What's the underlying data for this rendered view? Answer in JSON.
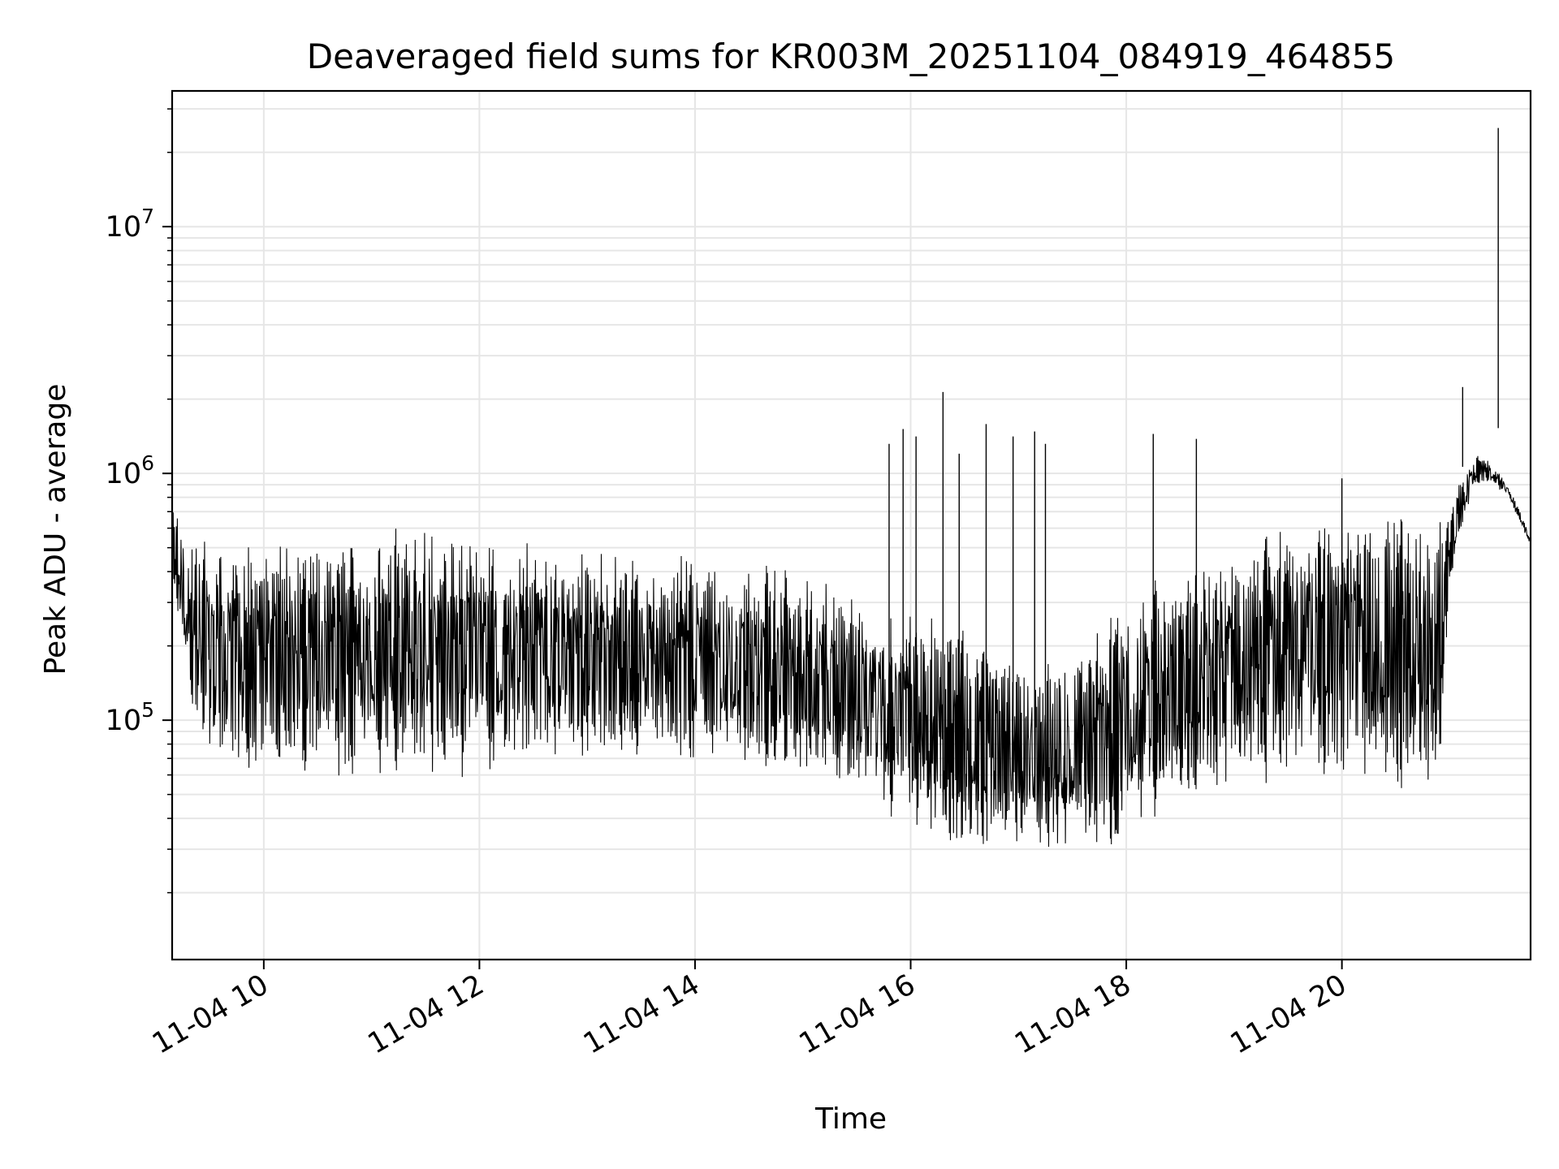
{
  "chart_data": {
    "type": "line",
    "title": "Deaveraged field sums for KR003M_20251104_084919_464855",
    "xlabel": "Time",
    "ylabel": "Peak ADU - average",
    "yscale": "log",
    "grid": true,
    "line_color": "#000000",
    "grid_color": "#e6e6e6",
    "xlim": [
      9.15,
      21.75
    ],
    "ylim_exp": [
      4.03,
      7.55
    ],
    "x_ticks": [
      {
        "value": 10,
        "label": "11-04 10"
      },
      {
        "value": 12,
        "label": "11-04 12"
      },
      {
        "value": 14,
        "label": "11-04 14"
      },
      {
        "value": 16,
        "label": "11-04 16"
      },
      {
        "value": 18,
        "label": "11-04 18"
      },
      {
        "value": 20,
        "label": "11-04 20"
      }
    ],
    "y_ticks": [
      {
        "exp": 5,
        "base": "10",
        "power": "5"
      },
      {
        "exp": 6,
        "base": "10",
        "power": "6"
      },
      {
        "exp": 7,
        "base": "10",
        "power": "7"
      }
    ],
    "envelope": {
      "hours": [
        9.15,
        9.3,
        9.5,
        9.8,
        10.0,
        10.5,
        11.0,
        11.3,
        11.8,
        12.3,
        12.8,
        13.3,
        13.8,
        14.3,
        14.8,
        15.3,
        15.8,
        16.2,
        16.6,
        17.0,
        17.4,
        17.8,
        18.0,
        18.3,
        18.6,
        19.0,
        19.3,
        19.6,
        19.9,
        20.3,
        20.6,
        20.9,
        21.0,
        21.1,
        21.25,
        21.4,
        21.55,
        21.75
      ],
      "low_exp": [
        5.6,
        5.0,
        4.75,
        4.72,
        4.72,
        4.72,
        4.72,
        4.75,
        4.72,
        4.76,
        4.76,
        4.78,
        4.78,
        4.78,
        4.76,
        4.68,
        4.58,
        4.47,
        4.42,
        4.42,
        4.42,
        4.45,
        4.5,
        4.55,
        4.6,
        4.68,
        4.72,
        4.7,
        4.68,
        4.68,
        4.66,
        4.65,
        5.5,
        5.75,
        5.95,
        5.95,
        5.9,
        5.7
      ],
      "high_exp": [
        5.9,
        5.8,
        5.8,
        5.8,
        5.78,
        5.75,
        5.8,
        5.85,
        5.82,
        5.78,
        5.75,
        5.72,
        5.72,
        5.68,
        5.66,
        5.6,
        5.5,
        5.45,
        5.4,
        5.3,
        5.3,
        5.4,
        5.55,
        5.6,
        5.68,
        5.75,
        5.8,
        5.88,
        5.9,
        5.9,
        5.9,
        5.9,
        5.85,
        6.0,
        6.08,
        6.05,
        5.95,
        5.75
      ]
    },
    "spikes": [
      {
        "hour": 15.8,
        "exp": 6.12
      },
      {
        "hour": 15.93,
        "exp": 6.18
      },
      {
        "hour": 16.05,
        "exp": 6.15
      },
      {
        "hour": 16.3,
        "exp": 6.33
      },
      {
        "hour": 16.45,
        "exp": 6.08
      },
      {
        "hour": 16.7,
        "exp": 6.2
      },
      {
        "hour": 16.95,
        "exp": 6.15
      },
      {
        "hour": 17.15,
        "exp": 6.17
      },
      {
        "hour": 17.25,
        "exp": 6.12
      },
      {
        "hour": 18.25,
        "exp": 6.16
      },
      {
        "hour": 18.65,
        "exp": 6.14
      },
      {
        "hour": 20.0,
        "exp": 5.98
      },
      {
        "hour": 21.12,
        "exp": 6.35
      },
      {
        "hour": 21.45,
        "exp": 7.4
      }
    ]
  }
}
